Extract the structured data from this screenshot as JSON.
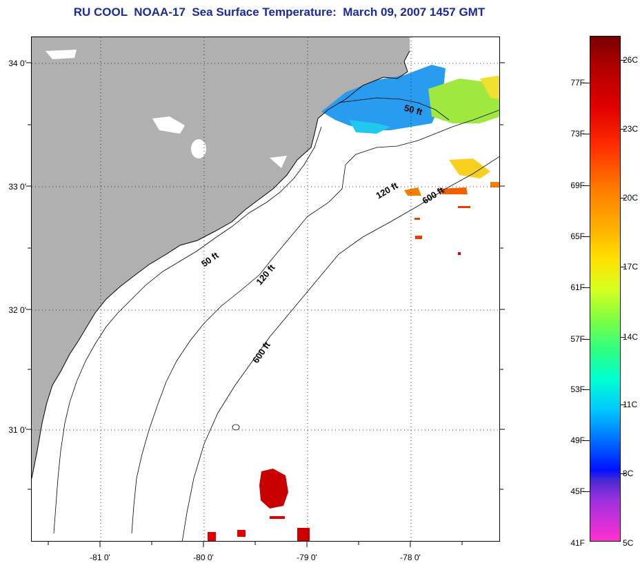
{
  "title": "RU COOL  NOAA-17  Sea Surface Temperature:  March 09, 2007 1457 GMT",
  "map": {
    "lat_labels": [
      "34 0'",
      "33 0'",
      "32 0'",
      "31 0'"
    ],
    "lon_labels": [
      "-81 0'",
      "-80 0'",
      "-79 0'",
      "-78 0'"
    ],
    "contour_labels": [
      "50 ft",
      "120 ft",
      "600 ft",
      "50 ft",
      "120 ft",
      "600 ft"
    ],
    "colors": {
      "land": "#b0b0b0",
      "water": "#ffffff",
      "coast": "#000000",
      "grid": "#000000"
    }
  },
  "colorbar": {
    "fahrenheit_labels": [
      "77F",
      "73F",
      "69F",
      "65F",
      "61F",
      "57F",
      "53F",
      "49F",
      "45F",
      "41F"
    ],
    "celsius_labels": [
      "26C",
      "23C",
      "20C",
      "17C",
      "14C",
      "11C",
      "8C",
      "5C"
    ]
  }
}
